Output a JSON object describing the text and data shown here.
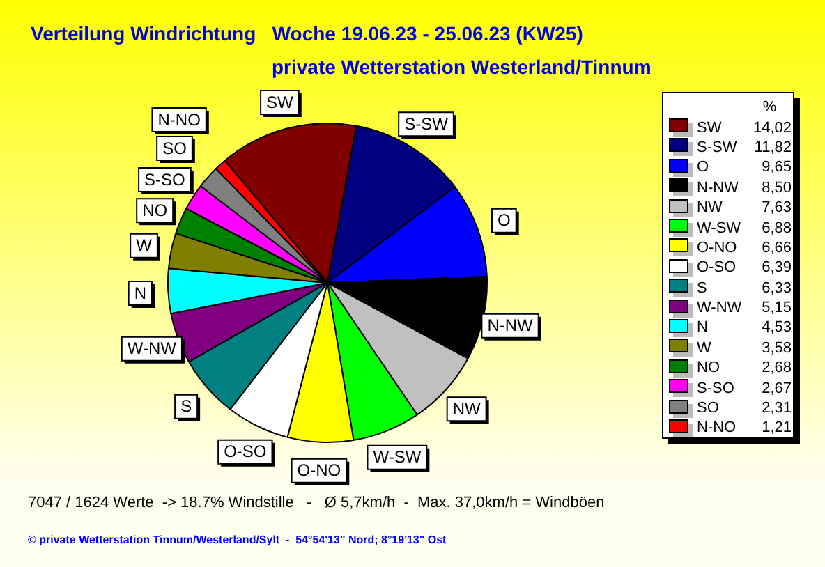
{
  "chart_data": {
    "type": "pie",
    "title": "Verteilung Windrichtung   Woche 19.06.23 - 25.06.23 (KW25)",
    "subtitle": "private Wetterstation Westerland/Tinnum",
    "legend_title": "%",
    "legend": "right",
    "categories": [
      "SW",
      "S-SW",
      "O",
      "N-NW",
      "NW",
      "W-SW",
      "O-NO",
      "O-SO",
      "S",
      "W-NW",
      "N",
      "W",
      "NO",
      "S-SO",
      "SO",
      "N-NO"
    ],
    "values": [
      14.02,
      11.82,
      9.65,
      8.5,
      7.63,
      6.88,
      6.66,
      6.39,
      6.33,
      5.15,
      4.53,
      3.58,
      2.68,
      2.67,
      2.31,
      1.21
    ],
    "value_labels": [
      "14,02",
      "11,82",
      "9,65",
      "8,50",
      "7,63",
      "6,88",
      "6,66",
      "6,39",
      "6,33",
      "5,15",
      "4,53",
      "3,58",
      "2,68",
      "2,67",
      "2,31",
      "1,21"
    ],
    "colors": [
      "#800000",
      "#000080",
      "#0000ff",
      "#000000",
      "#c0c0c0",
      "#00ff00",
      "#ffff00",
      "#ffffff",
      "#008080",
      "#800080",
      "#00ffff",
      "#808000",
      "#008000",
      "#ff00ff",
      "#808080",
      "#ff0000"
    ],
    "annotations": [
      "7047 / 1624 Werte  -> 18.7% Windstille   -   Ø 5,7km/h  -  Max. 37,0km/h = Windböen",
      "© private Wetterstation Tinnum/Westerland/Sylt  -  54°54'13\" Nord; 8°19'13\" Ost"
    ]
  }
}
